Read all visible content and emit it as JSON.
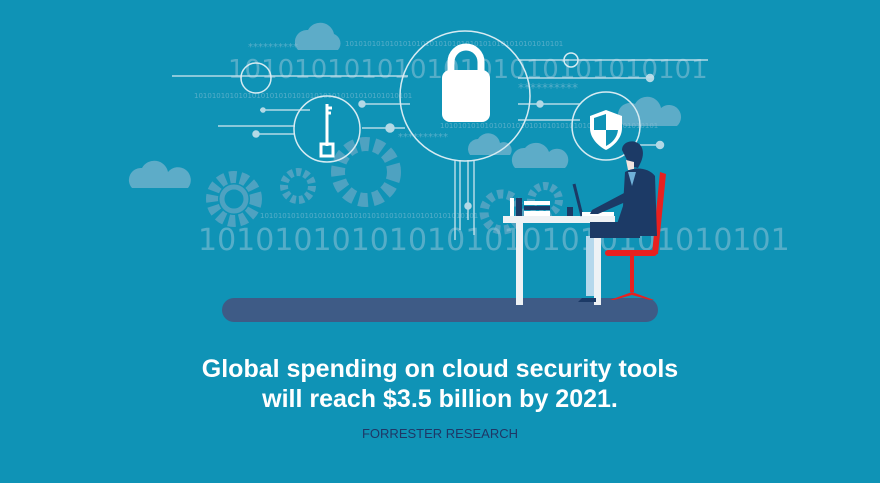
{
  "headline": {
    "line1": "Global spending on cloud security tools",
    "line2": "will reach $3.5 billion by 2021."
  },
  "source": "FORRESTER RESEARCH",
  "decor": {
    "binary_large": "10101010101010101010101010101",
    "binary_bottom": "1010101010101010101010101010101",
    "binary_small": "1010101010101010101010101010101010101010101010101",
    "stars": "**********"
  },
  "icons": [
    "lock-icon",
    "key-icon",
    "shield-icon",
    "cloud-icon",
    "gear-icon",
    "woman-at-desk-illustration"
  ],
  "colors": {
    "background": "#0f93b6",
    "headline": "#ffffff",
    "source": "#1f3766",
    "chair": "#e8201f",
    "floor": "#3e5b86"
  }
}
